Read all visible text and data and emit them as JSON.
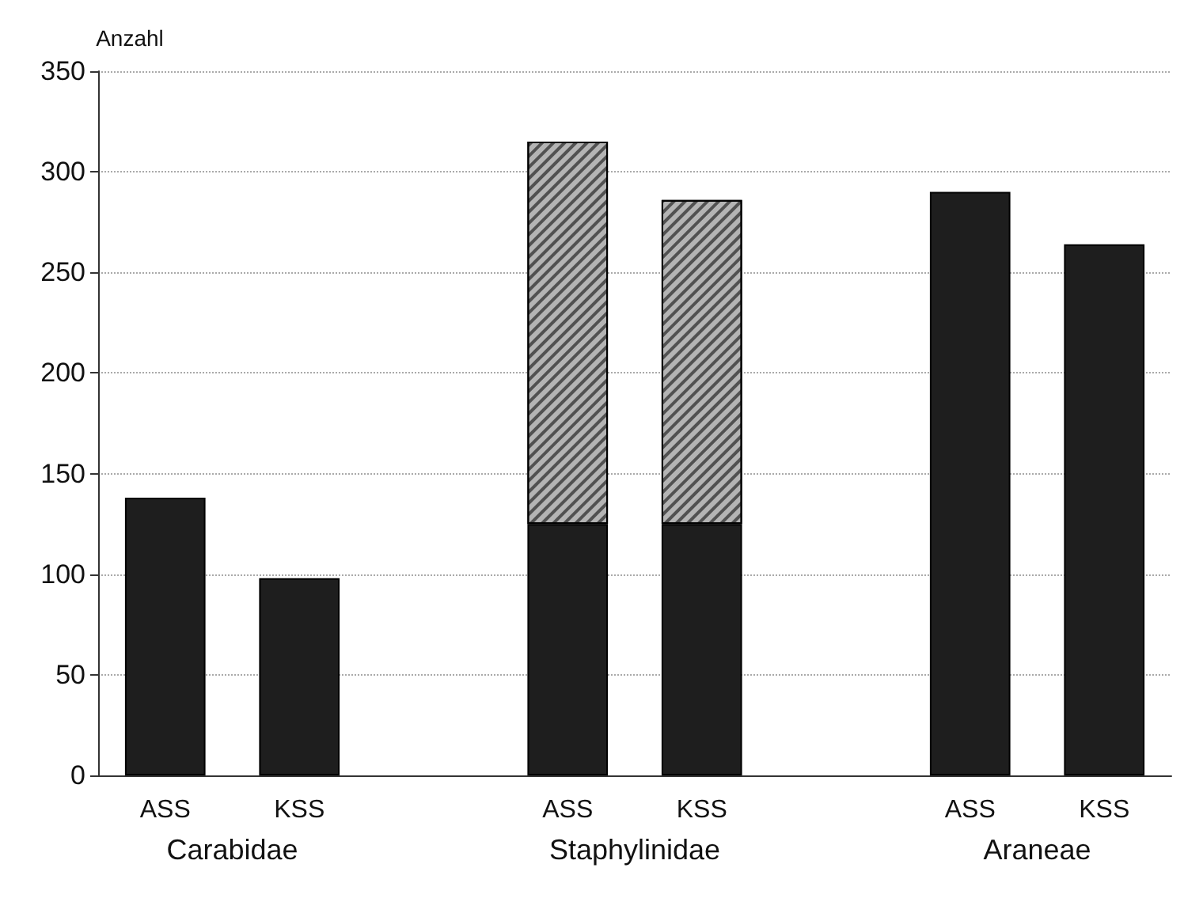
{
  "chart_data": {
    "type": "bar",
    "ylabel": "Anzahl",
    "categories": [
      "ASS",
      "KSS",
      null,
      "ASS",
      "KSS",
      null,
      "ASS",
      "KSS"
    ],
    "series": [
      {
        "color": "#1e1e1e",
        "values": [
          138,
          98,
          null,
          125,
          125,
          null,
          290,
          264
        ]
      },
      {
        "color": "#b4b4b4",
        "values": [
          null,
          null,
          null,
          190,
          161,
          null,
          null,
          null
        ]
      }
    ],
    "stacked": true,
    "ylim": [
      0,
      350
    ],
    "yticks": [
      0,
      50,
      100,
      150,
      200,
      250,
      300,
      350
    ],
    "grid": "y",
    "legend": false,
    "annotations": [
      "Carabidae",
      "Staphylinidae",
      "Araneae"
    ]
  }
}
